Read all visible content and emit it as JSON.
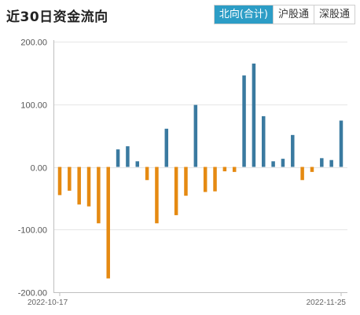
{
  "header": {
    "title": "近30日资金流向",
    "tabs": [
      {
        "label": "北向(合计)",
        "active": true
      },
      {
        "label": "沪股通",
        "active": false
      },
      {
        "label": "深股通",
        "active": false
      }
    ]
  },
  "colors": {
    "positive": "#3a7aa0",
    "negative": "#e58a12",
    "active_tab": "#2c9dc6"
  },
  "chart_data": {
    "type": "bar",
    "title": "近30日资金流向",
    "ylim": [
      -200,
      200
    ],
    "yticks": [
      200,
      100,
      0,
      -100,
      -200
    ],
    "ytick_labels": [
      "200.00",
      "100.00",
      "0.00",
      "-100.00",
      "-200.00"
    ],
    "x_start_label": "2022-10-17",
    "x_end_label": "2022-11-25",
    "grid": true,
    "values": [
      -45,
      -38,
      -60,
      -63,
      -90,
      -178,
      28,
      33,
      9,
      -21,
      -90,
      61,
      -77,
      -46,
      99,
      -40,
      -39,
      -7,
      -8,
      146,
      165,
      81,
      9,
      13,
      51,
      -21,
      -8,
      14,
      11,
      74
    ]
  }
}
